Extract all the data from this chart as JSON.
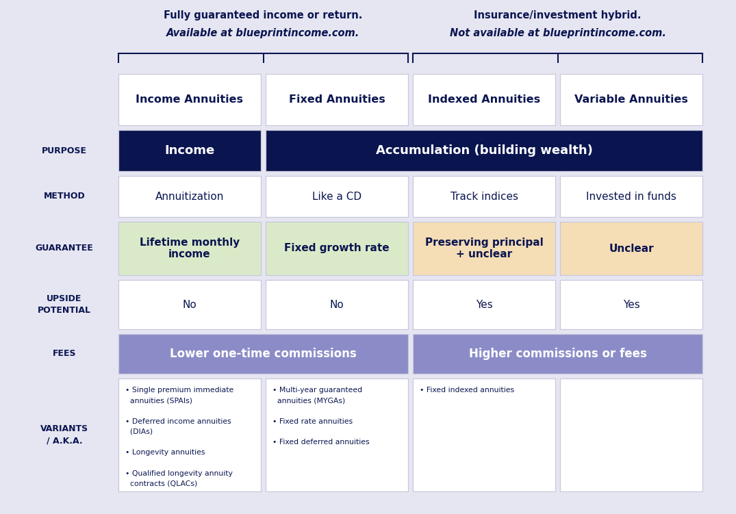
{
  "bg_color": "#e6e6f2",
  "dark_navy": "#0a1550",
  "label_color": "#1a1a8c",
  "text_color": "#1a1a8c",
  "green_cell": "#daeac8",
  "orange_cell": "#f5ddb5",
  "purple_cell": "#8b8cc7",
  "top_left_note1": "Fully guaranteed income or return.",
  "top_left_note2": "Available at blueprintincome.com.",
  "top_right_note1": "Insurance/investment hybrid.",
  "top_right_note2": "Not available at blueprintincome.com.",
  "headers": [
    "Income Annuities",
    "Fixed Annuities",
    "Indexed Annuities",
    "Variable Annuities"
  ],
  "purpose_col1": "Income",
  "purpose_col234": "Accumulation (building wealth)",
  "method_values": [
    "Annuitization",
    "Like a CD",
    "Track indices",
    "Invested in funds"
  ],
  "guarantee_values": [
    "Lifetime monthly\nincome",
    "Fixed growth rate",
    "Preserving principal\n+ unclear",
    "Unclear"
  ],
  "upside_values": [
    "No",
    "No",
    "Yes",
    "Yes"
  ],
  "fees_left": "Lower one-time commissions",
  "fees_right": "Higher commissions or fees",
  "variants_col1": "• Single premium immediate\n  annuities (SPAIs)\n\n• Deferred income annuities\n  (DIAs)\n\n• Longevity annuities\n\n• Qualified longevity annuity\n  contracts (QLACs)",
  "variants_col2": "• Multi-year guaranteed\n  annuities (MYGAs)\n\n• Fixed rate annuities\n\n• Fixed deferred annuities",
  "variants_col3": "• Fixed indexed annuities",
  "variants_col4": ""
}
